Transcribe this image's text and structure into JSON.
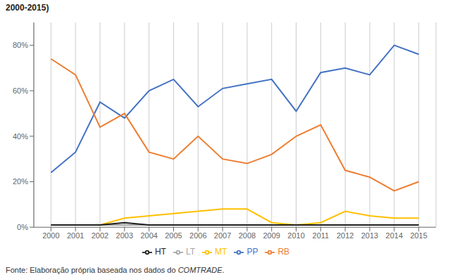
{
  "chart_data": {
    "type": "line",
    "title": "2000-2015)",
    "x": [
      2000,
      2001,
      2002,
      2003,
      2004,
      2005,
      2006,
      2007,
      2008,
      2009,
      2010,
      2011,
      2012,
      2013,
      2014,
      2015
    ],
    "series": [
      {
        "name": "PP",
        "color": "#4472C4",
        "values": [
          24,
          33,
          55,
          48,
          60,
          65,
          53,
          61,
          63,
          65,
          51,
          68,
          70,
          67,
          80,
          76
        ]
      },
      {
        "name": "RB",
        "color": "#ED7D31",
        "values": [
          74,
          67,
          44,
          50,
          33,
          30,
          40,
          30,
          28,
          32,
          40,
          45,
          25,
          22,
          16,
          20
        ]
      },
      {
        "name": "LT",
        "color": "#A5A5A5",
        "values": [
          1,
          1,
          1,
          1,
          1,
          1,
          1,
          1,
          1,
          1,
          1,
          1,
          1,
          1,
          1,
          1
        ]
      },
      {
        "name": "MT",
        "color": "#FFC000",
        "values": [
          1,
          1,
          1,
          4,
          5,
          6,
          7,
          8,
          8,
          2,
          1,
          2,
          7,
          5,
          4,
          4
        ]
      },
      {
        "name": "HT",
        "color": "#1F1F1F",
        "values": [
          1,
          1,
          1,
          2,
          1,
          1,
          1,
          1,
          1,
          1,
          1,
          1,
          1,
          1,
          1,
          1
        ]
      }
    ],
    "xlim": [
      1999.3,
      2015.7
    ],
    "xticks": [
      2000,
      2001,
      2002,
      2003,
      2004,
      2005,
      2006,
      2007,
      2008,
      2009,
      2010,
      2011,
      2012,
      2013,
      2014,
      2015
    ],
    "ylim": [
      0,
      90
    ],
    "yticks": [
      {
        "value": 0,
        "label": "0%"
      },
      {
        "value": 20,
        "label": "20%"
      },
      {
        "value": 40,
        "label": "40%"
      },
      {
        "value": 60,
        "label": "60%"
      },
      {
        "value": 80,
        "label": "80%"
      }
    ],
    "grid": "x",
    "legend": "bottom",
    "annotations": [
      "Fonte: Elaboração própria baseada nos dados do ",
      "COMTRADE",
      "."
    ]
  }
}
